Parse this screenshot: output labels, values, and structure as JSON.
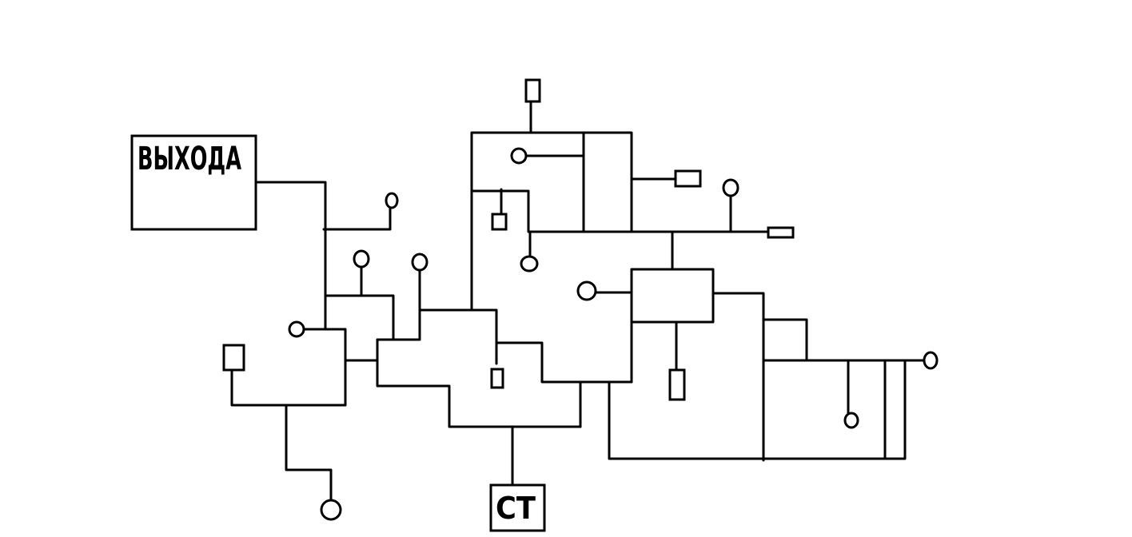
{
  "labels": {
    "exit_box": "ВЫХОДА",
    "start_box": "СТ"
  },
  "colors": {
    "ink": "#000000",
    "background": "#ffffff"
  }
}
